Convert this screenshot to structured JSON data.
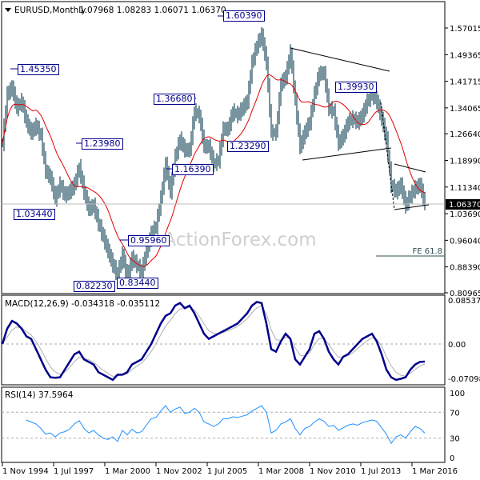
{
  "header": {
    "symbol": "EURUSD,Monthly",
    "ohlc": "1.07968 1.08283 1.06071 1.06370"
  },
  "watermark": "ActionForex.com",
  "colors": {
    "bars": "#1f4e5f",
    "ma": "#e00000",
    "macd": "#00008b",
    "signal": "#b0b0b0",
    "rsi": "#1e90ff",
    "labels": "#00008b",
    "current_price_bg": "#000000"
  },
  "chart_data": [
    {
      "type": "bar",
      "title": "EURUSD,Monthly",
      "x_tick_labels": [
        "1 Nov 1994",
        "1 Jul 1997",
        "1 Mar 2000",
        "1 Nov 2002",
        "1 Jul 2005",
        "1 Mar 2008",
        "1 Nov 2010",
        "1 Jul 2013",
        "1 Mar 2016"
      ],
      "y_tick_labels": [
        "1.57015",
        "1.49365",
        "1.41715",
        "1.34065",
        "1.26640",
        "1.18990",
        "1.11340",
        "1.03690",
        "0.96040",
        "0.88390",
        "0.80965"
      ],
      "ylim": [
        0.80965,
        1.57015
      ],
      "current_price": "1.06370",
      "x_start": "1994-11",
      "x_step_months": 3,
      "close": [
        1.24,
        1.38,
        1.4,
        1.34,
        1.36,
        1.3,
        1.27,
        1.29,
        1.26,
        1.16,
        1.14,
        1.08,
        1.12,
        1.09,
        1.1,
        1.12,
        1.17,
        1.1,
        1.05,
        1.06,
        1.01,
        0.97,
        0.93,
        0.89,
        0.86,
        0.92,
        0.85,
        0.91,
        0.89,
        0.87,
        0.93,
        0.98,
        1.0,
        1.08,
        1.18,
        1.1,
        1.2,
        1.25,
        1.22,
        1.22,
        1.33,
        1.32,
        1.23,
        1.23,
        1.18,
        1.19,
        1.28,
        1.28,
        1.33,
        1.32,
        1.34,
        1.36,
        1.47,
        1.52,
        1.55,
        1.47,
        1.27,
        1.27,
        1.41,
        1.43,
        1.5,
        1.36,
        1.23,
        1.27,
        1.3,
        1.38,
        1.44,
        1.44,
        1.34,
        1.33,
        1.24,
        1.26,
        1.3,
        1.31,
        1.3,
        1.32,
        1.36,
        1.38,
        1.36,
        1.31,
        1.25,
        1.12,
        1.1,
        1.12,
        1.06,
        1.09,
        1.11,
        1.12,
        1.0637
      ],
      "annotations": {
        "price_labels": [
          "1.45350",
          "1.60390",
          "1.36680",
          "1.23980",
          "1.16390",
          "1.03440",
          "1.23290",
          "1.39930",
          "0.95960",
          "0.82230",
          "0.83440"
        ],
        "fe_label": "FE 61.8"
      }
    },
    {
      "type": "line",
      "title": "MACD(12,26,9) -0.034318 -0.035112",
      "y_tick_labels": [
        "0.085379",
        "0.00",
        "-0.070989"
      ],
      "ylim": [
        -0.070989,
        0.085379
      ],
      "x_start": "1994-11",
      "x_step_months": 3,
      "series": [
        {
          "values": [
            0.0,
            0.03,
            0.045,
            0.04,
            0.03,
            0.015,
            0.01,
            -0.01,
            -0.03,
            -0.05,
            -0.065,
            -0.066,
            -0.065,
            -0.05,
            -0.035,
            -0.02,
            -0.015,
            -0.03,
            -0.035,
            -0.04,
            -0.055,
            -0.06,
            -0.065,
            -0.07,
            -0.06,
            -0.06,
            -0.055,
            -0.04,
            -0.035,
            -0.03,
            -0.015,
            0.0,
            0.02,
            0.04,
            0.055,
            0.06,
            0.075,
            0.08,
            0.07,
            0.075,
            0.06,
            0.04,
            0.02,
            0.01,
            0.015,
            0.02,
            0.025,
            0.03,
            0.035,
            0.04,
            0.05,
            0.06,
            0.075,
            0.082,
            0.08,
            0.04,
            -0.01,
            -0.015,
            0.005,
            0.02,
            0.01,
            -0.03,
            -0.04,
            -0.025,
            -0.01,
            0.02,
            0.025,
            0.01,
            -0.015,
            -0.03,
            -0.04,
            -0.025,
            -0.02,
            -0.01,
            0.0,
            0.01,
            0.015,
            0.02,
            0.005,
            -0.02,
            -0.05,
            -0.065,
            -0.07,
            -0.068,
            -0.065,
            -0.05,
            -0.04,
            -0.035,
            -0.0343
          ]
        }
      ]
    },
    {
      "type": "line",
      "title": "RSI(14) 37.5964",
      "y_tick_labels": [
        "100",
        "70",
        "30",
        "0"
      ],
      "ylim": [
        0,
        100
      ],
      "levels": [
        70,
        30
      ],
      "x_start": "1994-11",
      "x_step_months": 3,
      "series": [
        {
          "values": [
            null,
            null,
            null,
            null,
            null,
            58,
            55,
            52,
            45,
            36,
            38,
            32,
            38,
            40,
            44,
            52,
            57,
            45,
            38,
            42,
            35,
            30,
            28,
            32,
            25,
            42,
            35,
            44,
            38,
            40,
            50,
            60,
            62,
            72,
            80,
            70,
            75,
            78,
            68,
            70,
            76,
            70,
            55,
            52,
            48,
            52,
            60,
            60,
            63,
            62,
            64,
            66,
            72,
            76,
            80,
            70,
            38,
            42,
            52,
            55,
            60,
            45,
            35,
            45,
            48,
            55,
            60,
            56,
            48,
            50,
            42,
            46,
            50,
            52,
            50,
            54,
            56,
            58,
            56,
            46,
            36,
            22,
            32,
            35,
            30,
            40,
            48,
            45,
            37.6
          ]
        }
      ]
    }
  ]
}
